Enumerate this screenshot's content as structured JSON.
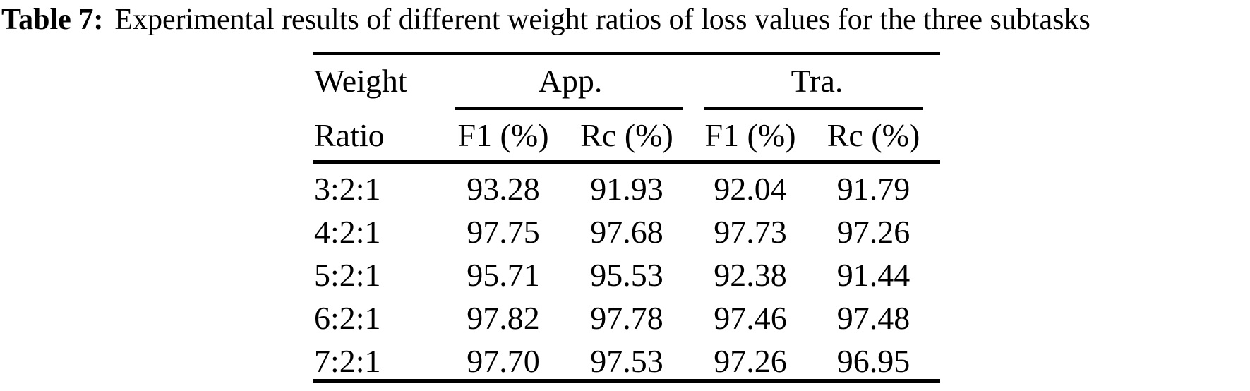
{
  "page": {
    "background_color": "#ffffff",
    "text_color": "#000000"
  },
  "caption": {
    "label": "Table 7:",
    "text": "Experimental results of different weight ratios of loss values for the three subtasks"
  },
  "table": {
    "row_header": {
      "line1": "Weight",
      "line2": "Ratio"
    },
    "column_groups": [
      {
        "label": "App."
      },
      {
        "label": "Tra."
      }
    ],
    "sub_headers": [
      "F1 (%)",
      "Rc (%)",
      "F1 (%)",
      "Rc (%)"
    ],
    "rows": [
      {
        "ratio": "3:2:1",
        "values": [
          "93.28",
          "91.93",
          "92.04",
          "91.79"
        ]
      },
      {
        "ratio": "4:2:1",
        "values": [
          "97.75",
          "97.68",
          "97.73",
          "97.26"
        ]
      },
      {
        "ratio": "5:2:1",
        "values": [
          "95.71",
          "95.53",
          "92.38",
          "91.44"
        ]
      },
      {
        "ratio": "6:2:1",
        "values": [
          "97.82",
          "97.78",
          "97.46",
          "97.48"
        ]
      },
      {
        "ratio": "7:2:1",
        "values": [
          "97.70",
          "97.53",
          "97.26",
          "96.95"
        ]
      }
    ]
  },
  "chart_data": {
    "type": "table",
    "title": "Table 7: Experimental results of different weight ratios of loss values for the three subtasks",
    "columns": [
      "Weight Ratio",
      "App. F1 (%)",
      "App. Rc (%)",
      "Tra. F1 (%)",
      "Tra. Rc (%)"
    ],
    "rows": [
      [
        "3:2:1",
        93.28,
        91.93,
        92.04,
        91.79
      ],
      [
        "4:2:1",
        97.75,
        97.68,
        97.73,
        97.26
      ],
      [
        "5:2:1",
        95.71,
        95.53,
        92.38,
        91.44
      ],
      [
        "6:2:1",
        97.82,
        97.78,
        97.46,
        97.48
      ],
      [
        "7:2:1",
        97.7,
        97.53,
        97.26,
        96.95
      ]
    ]
  }
}
